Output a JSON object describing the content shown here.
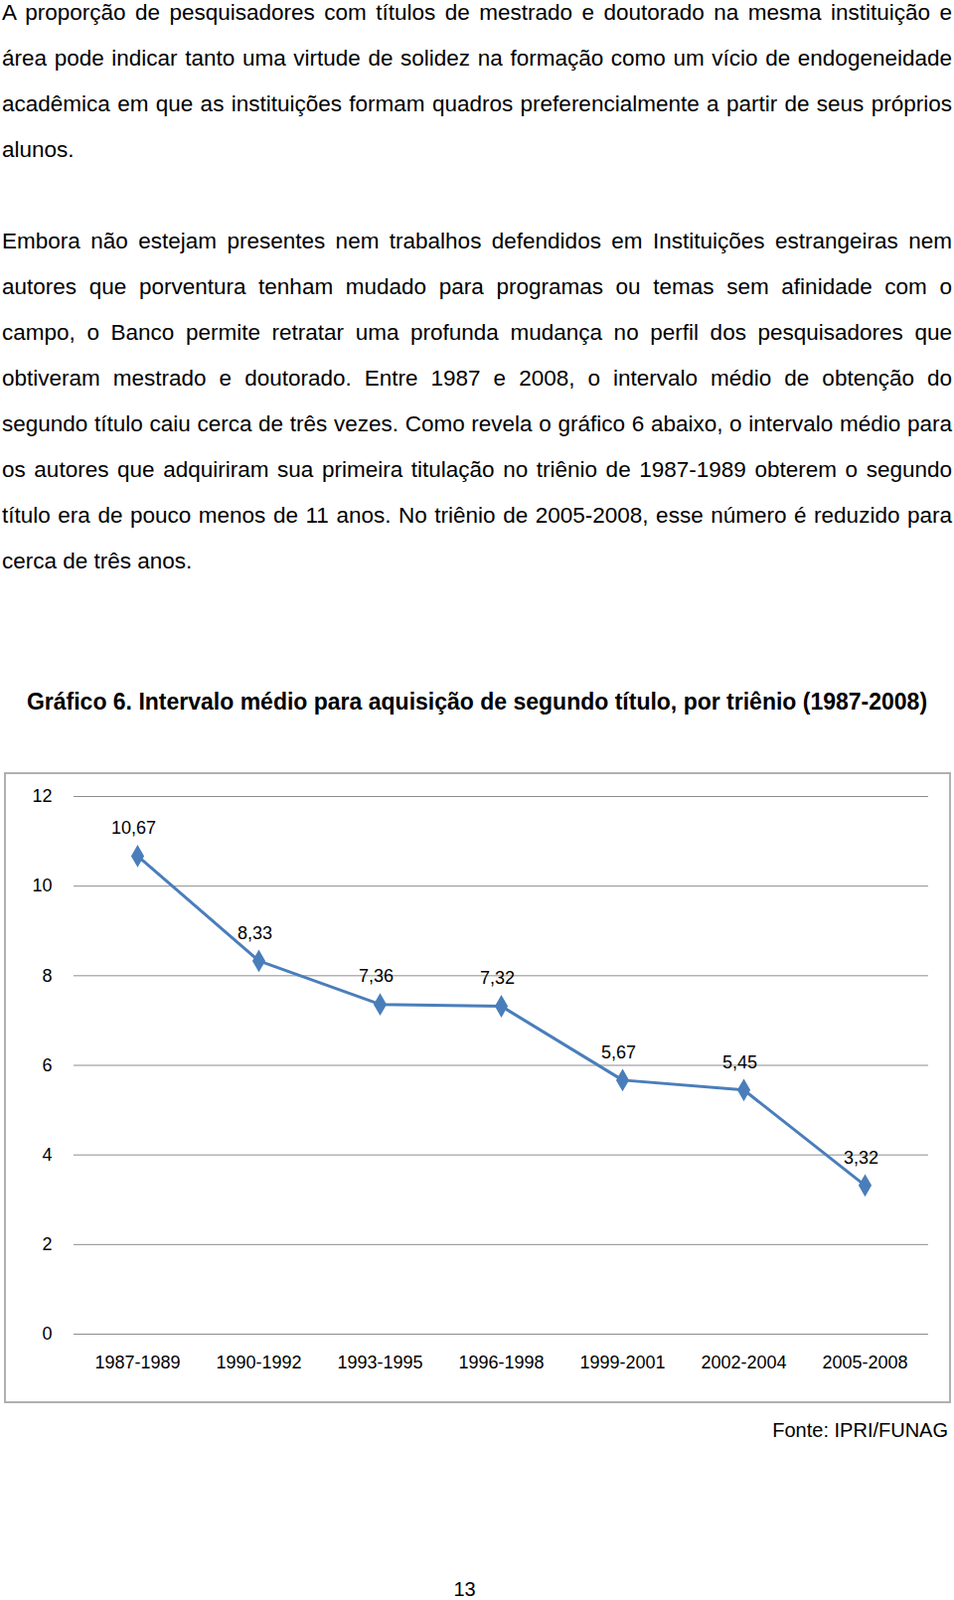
{
  "paragraphs": [
    "A proporção de pesquisadores com títulos de mestrado e doutorado na mesma instituição e área pode indicar tanto uma virtude de solidez na formação como um vício de endogeneidade acadêmica em que as instituições formam quadros preferencialmente a partir de seus próprios alunos.",
    "Embora não estejam presentes nem trabalhos defendidos em Instituições estrangeiras nem autores que porventura tenham mudado para programas ou temas sem afinidade com o campo, o Banco permite retratar uma profunda mudança no perfil dos pesquisadores que obtiveram mestrado e doutorado. Entre 1987 e 2008, o intervalo médio de obtenção do segundo título caiu cerca de três vezes. Como revela o gráfico 6 abaixo, o intervalo médio para os autores que adquiriram sua primeira titulação no triênio de 1987-1989 obterem o segundo título era de pouco menos de 11 anos. No triênio de 2005-2008, esse número é reduzido para cerca de três anos."
  ],
  "chart_data": {
    "type": "line",
    "title": "Gráfico 6. Intervalo médio para aquisição de segundo título, por triênio (1987-2008)",
    "categories": [
      "1987-1989",
      "1990-1992",
      "1993-1995",
      "1996-1998",
      "1999-2001",
      "2002-2004",
      "2005-2008"
    ],
    "values": [
      10.67,
      8.33,
      7.36,
      7.32,
      5.67,
      5.45,
      3.32
    ],
    "value_labels": [
      "10,67",
      "8,33",
      "7,36",
      "7,32",
      "5,67",
      "5,45",
      "3,32"
    ],
    "data_labels": true,
    "color": "#4a7ebb",
    "marker": "diamond",
    "ylim": [
      0,
      12
    ],
    "yticks": [
      0,
      2,
      4,
      6,
      8,
      10,
      12
    ],
    "grid": true
  },
  "source": "Fonte: IPRI/FUNAG",
  "page_number": "13"
}
